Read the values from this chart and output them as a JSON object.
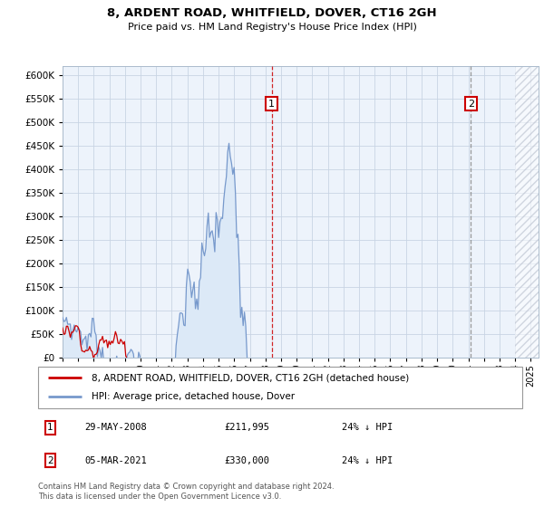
{
  "title": "8, ARDENT ROAD, WHITFIELD, DOVER, CT16 2GH",
  "subtitle": "Price paid vs. HM Land Registry's House Price Index (HPI)",
  "property_label": "8, ARDENT ROAD, WHITFIELD, DOVER, CT16 2GH (detached house)",
  "hpi_label": "HPI: Average price, detached house, Dover",
  "property_color": "#cc0000",
  "hpi_color": "#7799cc",
  "hpi_fill_color": "#dce9f7",
  "background_color": "#edf3fb",
  "ylim": [
    0,
    620000
  ],
  "yticks": [
    0,
    50000,
    100000,
    150000,
    200000,
    250000,
    300000,
    350000,
    400000,
    450000,
    500000,
    550000,
    600000
  ],
  "purchase1_date": "29-MAY-2008",
  "purchase1_price": 211995,
  "purchase1_label": "£211,995",
  "purchase1_pct": "24% ↓ HPI",
  "purchase2_date": "05-MAR-2021",
  "purchase2_price": 330000,
  "purchase2_label": "£330,000",
  "purchase2_pct": "24% ↓ HPI",
  "vline1_x": 2008.4,
  "vline2_x": 2021.17,
  "footer": "Contains HM Land Registry data © Crown copyright and database right 2024.\nThis data is licensed under the Open Government Licence v3.0.",
  "xmin": 1995,
  "xmax": 2025.5,
  "hatch_start": 2024.0
}
